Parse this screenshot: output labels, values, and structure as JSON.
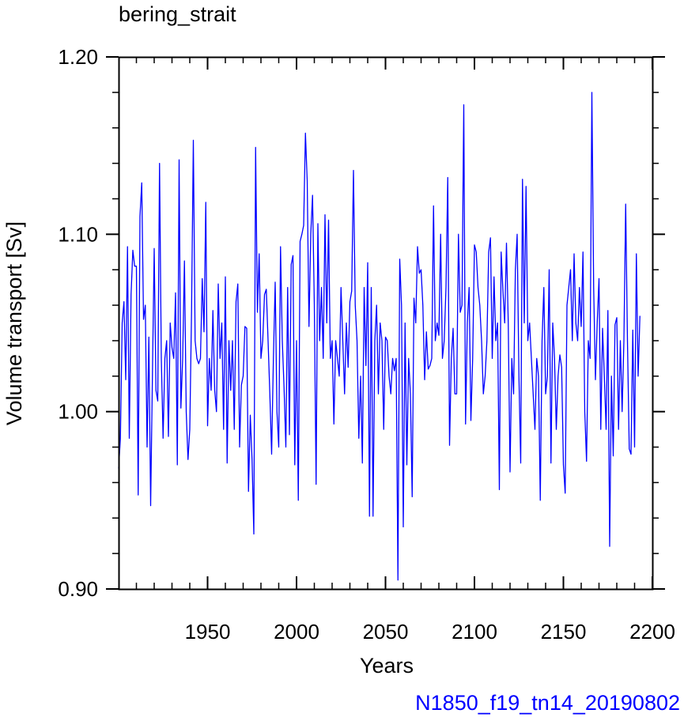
{
  "chart_data": {
    "type": "line",
    "title": "bering_strait",
    "xlabel": "Years",
    "ylabel": "Volume transport [Sv]",
    "annotation": "N1850_f19_tn14_20190802",
    "xlim": [
      1900,
      2200
    ],
    "ylim": [
      0.9,
      1.2
    ],
    "x_major_ticks": [
      1950,
      2000,
      2050,
      2100,
      2150,
      2200
    ],
    "x_major_tick_labels": [
      "1950",
      "2000",
      "2050",
      "2100",
      "2150",
      "2200"
    ],
    "y_major_ticks": [
      0.9,
      1.0,
      1.1,
      1.2
    ],
    "y_major_tick_labels": [
      "0.90",
      "1.00",
      "1.10",
      "1.20"
    ],
    "grid": false,
    "colors": {
      "series": "#0000ff",
      "annotation": "#0000ff",
      "axes": "#000000"
    },
    "series": [
      {
        "x_start": 1900,
        "x_step": 1,
        "values": [
          0.968,
          0.985,
          1.05,
          1.062,
          1.018,
          1.093,
          0.985,
          1.066,
          1.091,
          1.082,
          1.082,
          0.953,
          1.11,
          1.129,
          1.052,
          1.06,
          0.98,
          1.042,
          0.947,
          1.02,
          1.092,
          1.012,
          1.006,
          1.14,
          1.03,
          0.985,
          1.03,
          1.04,
          0.986,
          1.05,
          1.036,
          1.03,
          1.067,
          0.97,
          1.142,
          1.002,
          1.03,
          1.085,
          1.0,
          0.973,
          0.99,
          1.057,
          1.153,
          1.04,
          1.03,
          1.027,
          1.03,
          1.075,
          1.045,
          1.118,
          0.992,
          1.03,
          1.012,
          1.057,
          1.012,
          1.0,
          1.072,
          1.03,
          1.05,
          0.99,
          1.076,
          0.971,
          1.04,
          1.012,
          1.04,
          0.99,
          1.062,
          1.072,
          0.98,
          1.015,
          1.02,
          1.048,
          1.047,
          0.955,
          0.998,
          0.973,
          0.931,
          1.149,
          1.056,
          1.089,
          1.03,
          1.04,
          1.066,
          1.069,
          1.04,
          1.01,
          0.976,
          1.03,
          1.073,
          1.0,
          0.98,
          1.093,
          1.04,
          1.013,
          0.98,
          1.07,
          0.987,
          1.083,
          1.088,
          0.97,
          1.04,
          0.95,
          1.096,
          1.1,
          1.105,
          1.157,
          1.13,
          1.048,
          1.1,
          1.122,
          1.06,
          0.959,
          1.106,
          1.04,
          1.07,
          1.03,
          1.111,
          1.05,
          1.108,
          1.03,
          1.04,
          0.993,
          1.04,
          1.03,
          1.02,
          1.07,
          1.04,
          1.01,
          1.05,
          1.025,
          1.062,
          1.068,
          1.136,
          1.06,
          1.04,
          0.985,
          1.02,
          0.971,
          1.07,
          1.026,
          1.084,
          0.941,
          1.07,
          0.941,
          1.04,
          1.06,
          1.01,
          1.05,
          1.04,
          0.99,
          1.042,
          1.04,
          1.02,
          1.01,
          1.03,
          1.023,
          1.03,
          0.905,
          1.086,
          1.06,
          0.935,
          1.05,
          0.97,
          1.03,
          1.01,
          0.952,
          1.064,
          1.05,
          1.093,
          1.078,
          1.08,
          1.06,
          1.018,
          1.045,
          1.024,
          1.026,
          1.03,
          1.116,
          1.04,
          1.05,
          1.043,
          1.1,
          1.03,
          1.04,
          1.07,
          1.132,
          0.981,
          1.03,
          1.047,
          1.01,
          1.01,
          1.1,
          1.056,
          1.06,
          1.173,
          0.993,
          1.05,
          1.07,
          0.995,
          1.03,
          1.094,
          1.09,
          1.07,
          1.06,
          1.04,
          1.01,
          1.02,
          1.04,
          1.09,
          1.098,
          1.03,
          1.076,
          1.04,
          1.05,
          0.956,
          1.09,
          1.068,
          1.05,
          1.095,
          1.05,
          0.966,
          1.03,
          1.01,
          1.08,
          1.1,
          1.02,
          0.971,
          1.131,
          1.05,
          1.127,
          1.04,
          1.05,
          1.03,
          1.01,
          0.99,
          1.03,
          1.02,
          0.95,
          1.04,
          1.07,
          1.01,
          1.02,
          1.08,
          0.971,
          1.05,
          1.03,
          0.99,
          1.02,
          1.032,
          1.025,
          0.97,
          0.954,
          1.06,
          1.07,
          1.08,
          1.04,
          1.089,
          1.05,
          1.04,
          1.07,
          1.048,
          1.09,
          1.0,
          0.972,
          1.04,
          1.03,
          1.18,
          1.07,
          1.018,
          1.05,
          1.075,
          0.99,
          1.047,
          1.02,
          0.99,
          1.057,
          0.924,
          1.02,
          0.975,
          1.049,
          1.053,
          0.99,
          1.04,
          1.0,
          1.04,
          1.117,
          1.04,
          0.979,
          0.976,
          1.046,
          0.98,
          1.089,
          1.02,
          1.054
        ]
      }
    ]
  }
}
